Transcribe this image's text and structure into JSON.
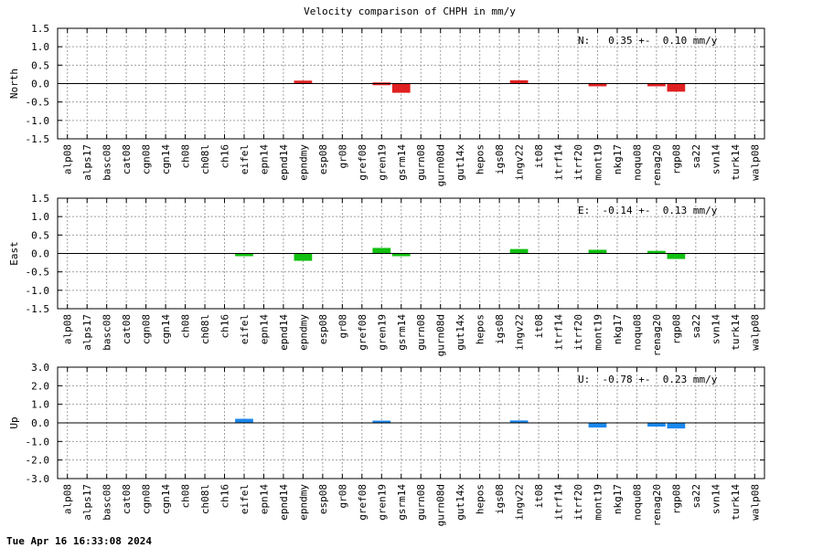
{
  "title": "Velocity comparison of CHPH in mm/y",
  "footer": "Tue Apr 16 16:33:08 2024",
  "stations": [
    "alp08",
    "alps17",
    "basc08",
    "cat08",
    "cgn08",
    "cgn14",
    "ch08",
    "ch08l",
    "ch16",
    "eifel",
    "epn14",
    "epnd14",
    "epndmy",
    "esp08",
    "gr08",
    "gref08",
    "gren19",
    "gsrm14",
    "gurn08",
    "gurn08d",
    "gut14x",
    "hepos",
    "igs08",
    "ingv22",
    "it08",
    "itrf14",
    "itrf20",
    "mont19",
    "nkg17",
    "noqu08",
    "renag20",
    "rgp08",
    "sa22",
    "svn14",
    "turk14",
    "walp08"
  ],
  "chart_data": [
    {
      "type": "bar",
      "ylabel": "North",
      "annotation": "N:   0.35 +-  0.10 mm/y",
      "color": "#e02020",
      "ylim": [
        -1.5,
        1.5
      ],
      "yticks": [
        -1.5,
        -1.0,
        -0.5,
        0.0,
        0.5,
        1.0,
        1.5
      ],
      "ytick_labels": [
        "-1.5",
        "-1.0",
        "-0.5",
        "0.0",
        "0.5",
        "1.0",
        "1.5"
      ],
      "grid": true,
      "values": {
        "epndmy": 0.08,
        "gren19": 0.03,
        "gsrm14": -0.25,
        "ingv22": 0.09,
        "mont19": -0.03,
        "renag20": -0.07,
        "rgp08": -0.22
      }
    },
    {
      "type": "bar",
      "ylabel": "East",
      "annotation": "E:  -0.14 +-  0.13 mm/y",
      "color": "#10c010",
      "ylim": [
        -1.5,
        1.5
      ],
      "yticks": [
        -1.5,
        -1.0,
        -0.5,
        0.0,
        0.5,
        1.0,
        1.5
      ],
      "ytick_labels": [
        "-1.5",
        "-1.0",
        "-0.5",
        "0.0",
        "0.5",
        "1.0",
        "1.5"
      ],
      "grid": true,
      "values": {
        "eifel": -0.07,
        "epndmy": -0.2,
        "gren19": 0.15,
        "gsrm14": -0.05,
        "ingv22": 0.12,
        "mont19": 0.1,
        "renag20": 0.07,
        "rgp08": -0.15
      }
    },
    {
      "type": "bar",
      "ylabel": "Up",
      "annotation": "U:  -0.78 +-  0.23 mm/y",
      "color": "#1a88ee",
      "ylim": [
        -3.0,
        3.0
      ],
      "yticks": [
        -3.0,
        -2.0,
        -1.0,
        0.0,
        1.0,
        2.0,
        3.0
      ],
      "ytick_labels": [
        "-3.0",
        "-2.0",
        "-1.0",
        "0.0",
        "1.0",
        "2.0",
        "3.0"
      ],
      "grid": true,
      "values": {
        "eifel": 0.22,
        "gren19": 0.12,
        "ingv22": 0.13,
        "mont19": -0.25,
        "renag20": -0.2,
        "rgp08": -0.3
      }
    }
  ]
}
